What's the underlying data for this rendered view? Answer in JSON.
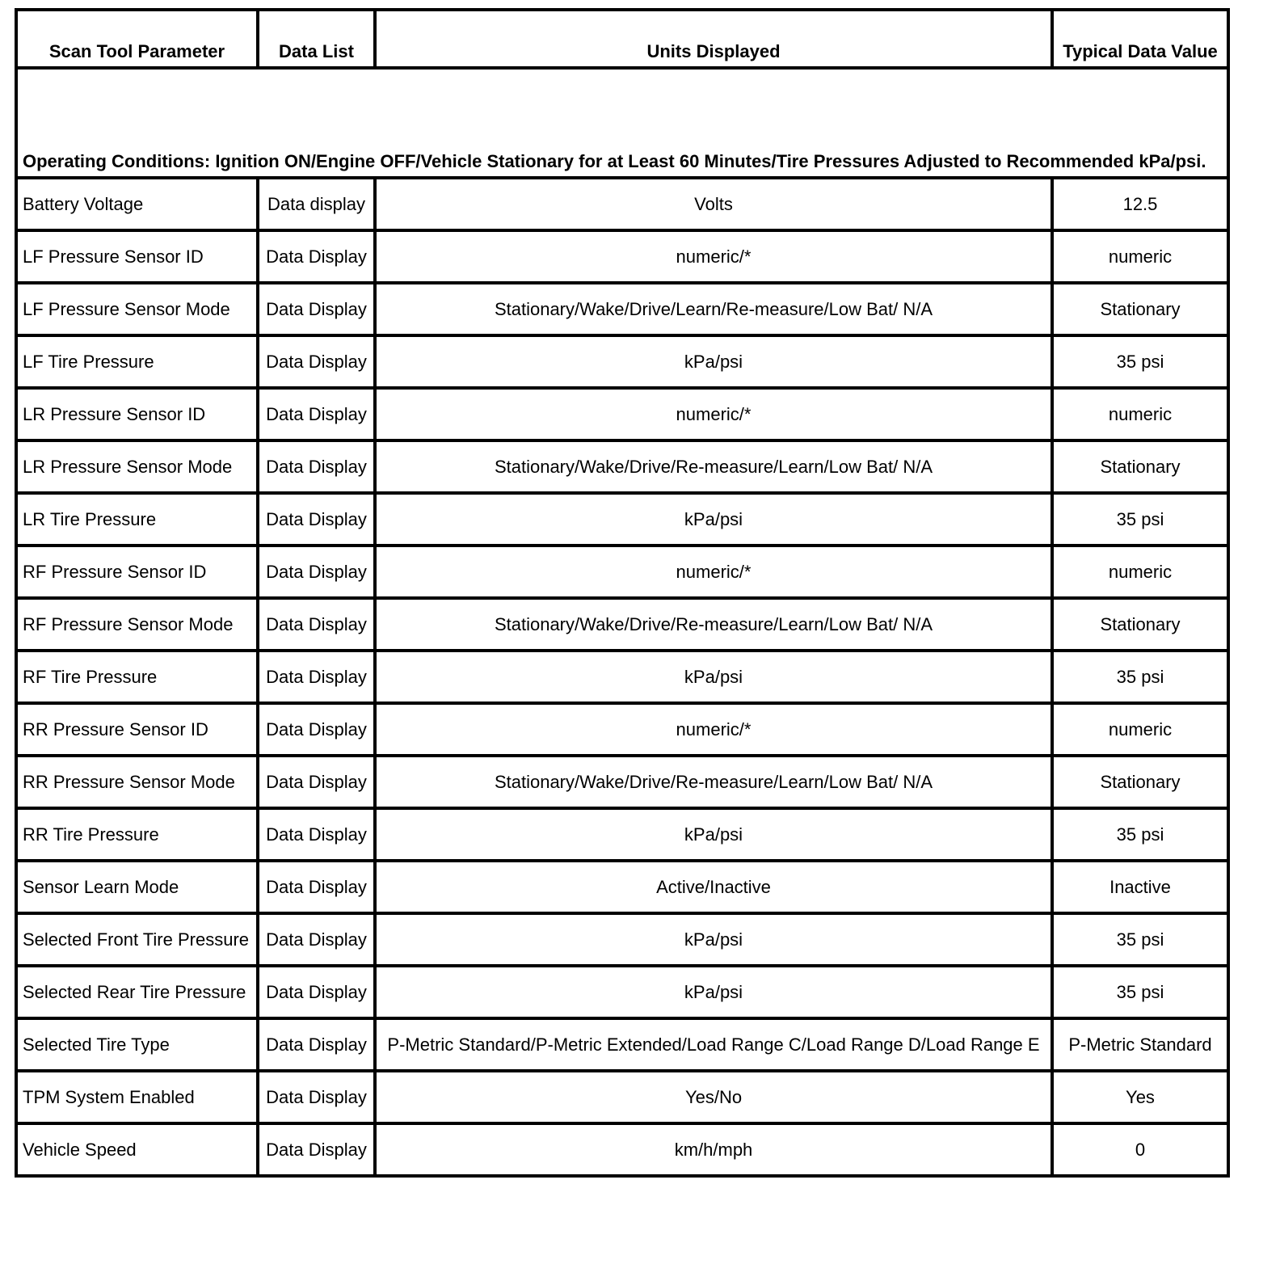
{
  "headers": [
    "Scan Tool Parameter",
    "Data List",
    "Units Displayed",
    "Typical Data Value"
  ],
  "operating_conditions": "Operating Conditions: Ignition ON/Engine OFF/Vehicle Stationary for at Least 60 Minutes/Tire Pressures Adjusted to Recommended kPa/psi.",
  "rows": [
    {
      "param": "Battery Voltage",
      "list": "Data display",
      "units": "Volts",
      "value": "12.5"
    },
    {
      "param": "LF Pressure Sensor ID",
      "list": "Data Display",
      "units": "numeric/*",
      "value": "numeric"
    },
    {
      "param": "LF Pressure Sensor Mode",
      "list": "Data Display",
      "units": "Stationary/Wake/Drive/Learn/Re-measure/Low Bat/ N/A",
      "value": "Stationary"
    },
    {
      "param": "LF Tire Pressure",
      "list": "Data Display",
      "units": "kPa/psi",
      "value": "35 psi"
    },
    {
      "param": "LR Pressure Sensor ID",
      "list": "Data Display",
      "units": "numeric/*",
      "value": "numeric"
    },
    {
      "param": "LR Pressure Sensor Mode",
      "list": "Data Display",
      "units": "Stationary/Wake/Drive/Re-measure/Learn/Low Bat/ N/A",
      "value": "Stationary"
    },
    {
      "param": "LR Tire Pressure",
      "list": "Data Display",
      "units": "kPa/psi",
      "value": "35 psi"
    },
    {
      "param": "RF Pressure Sensor ID",
      "list": "Data Display",
      "units": "numeric/*",
      "value": "numeric"
    },
    {
      "param": "RF Pressure Sensor Mode",
      "list": "Data Display",
      "units": "Stationary/Wake/Drive/Re-measure/Learn/Low Bat/ N/A",
      "value": "Stationary"
    },
    {
      "param": "RF Tire Pressure",
      "list": "Data Display",
      "units": "kPa/psi",
      "value": "35 psi"
    },
    {
      "param": "RR Pressure Sensor ID",
      "list": "Data Display",
      "units": "numeric/*",
      "value": "numeric"
    },
    {
      "param": "RR Pressure Sensor Mode",
      "list": "Data Display",
      "units": "Stationary/Wake/Drive/Re-measure/Learn/Low Bat/ N/A",
      "value": "Stationary"
    },
    {
      "param": "RR Tire Pressure",
      "list": "Data Display",
      "units": "kPa/psi",
      "value": "35 psi"
    },
    {
      "param": "Sensor Learn Mode",
      "list": "Data Display",
      "units": "Active/Inactive",
      "value": "Inactive"
    },
    {
      "param": "Selected Front Tire Pressure",
      "list": "Data Display",
      "units": "kPa/psi",
      "value": "35 psi"
    },
    {
      "param": "Selected Rear Tire Pressure",
      "list": "Data Display",
      "units": "kPa/psi",
      "value": "35 psi"
    },
    {
      "param": "Selected Tire Type",
      "list": "Data Display",
      "units": "P-Metric Standard/P-Metric Extended/Load Range C/Load Range D/Load Range E",
      "value": "P-Metric Standard"
    },
    {
      "param": "TPM System Enabled",
      "list": "Data Display",
      "units": "Yes/No",
      "value": "Yes"
    },
    {
      "param": "Vehicle Speed",
      "list": "Data Display",
      "units": "km/h/mph",
      "value": "0"
    }
  ]
}
